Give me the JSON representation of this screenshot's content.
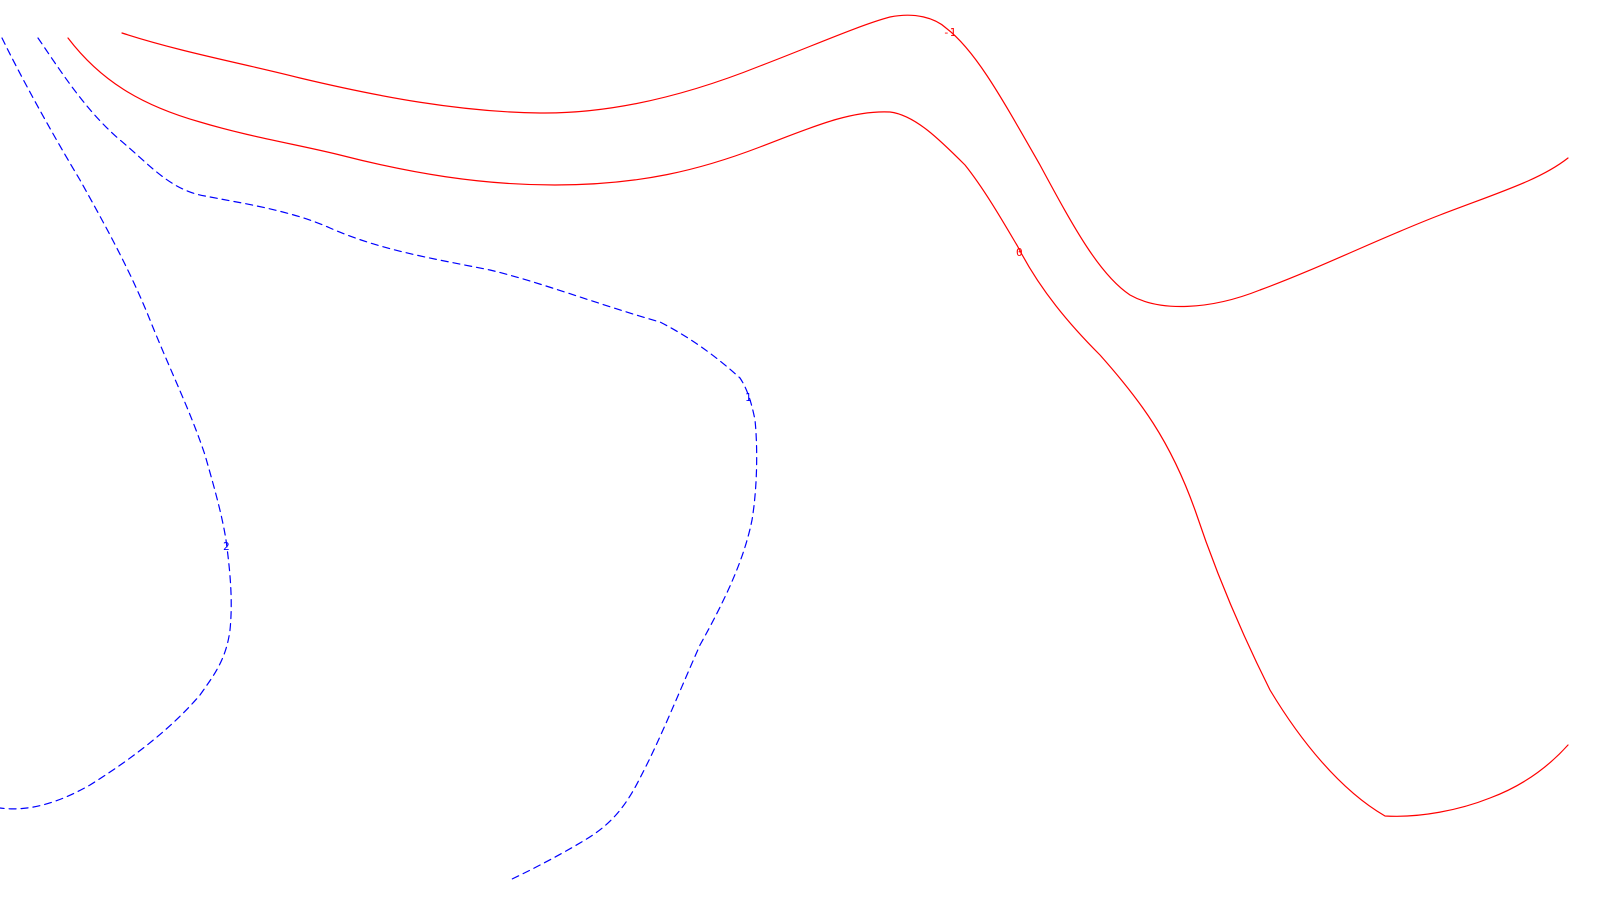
{
  "contour_map": {
    "colors": {
      "background": "#ffffff",
      "negative_contour": "#ff0000",
      "positive_contour": "#0000ff"
    },
    "contours": [
      {
        "id": "contour-minus-1",
        "label": "-1",
        "color": "#ff0000",
        "style": "solid"
      },
      {
        "id": "contour-0",
        "label": "0",
        "color": "#ff0000",
        "style": "solid"
      },
      {
        "id": "contour-1",
        "label": "1",
        "color": "#0000ff",
        "style": "dashed"
      },
      {
        "id": "contour-2",
        "label": "2",
        "color": "#0000ff",
        "style": "dashed"
      }
    ]
  }
}
